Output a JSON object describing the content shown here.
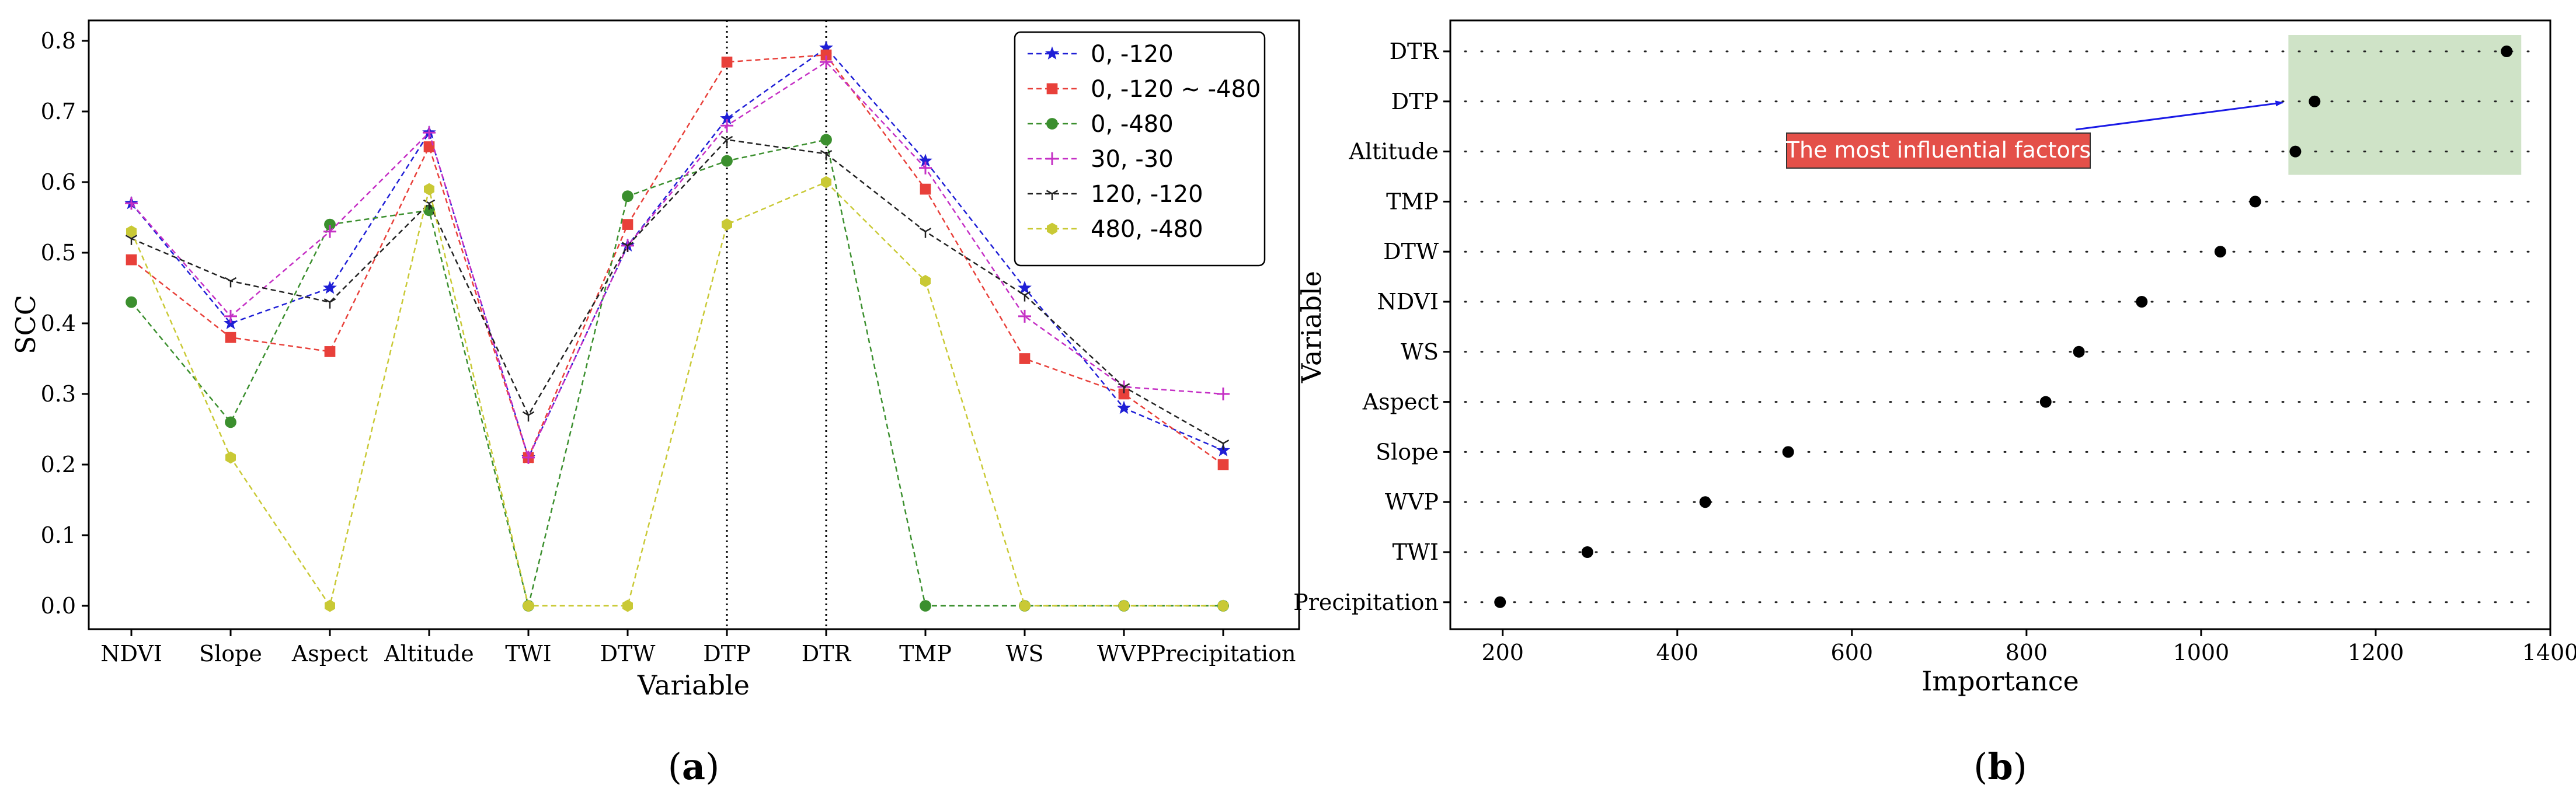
{
  "chart_data": [
    {
      "type": "line",
      "panel_label": "(a)",
      "panel_letter": "a",
      "xlabel": "Variable",
      "ylabel": "SCC",
      "ylim": [
        -0.04,
        0.82
      ],
      "yticks": [
        0.0,
        0.1,
        0.2,
        0.3,
        0.4,
        0.5,
        0.6,
        0.7,
        0.8
      ],
      "ytick_labels": [
        "0.0",
        "0.1",
        "0.2",
        "0.3",
        "0.4",
        "0.5",
        "0.6",
        "0.7",
        "0.8"
      ],
      "categories": [
        "NDVI",
        "Slope",
        "Aspect",
        "Altitude",
        "TWI",
        "DTW",
        "DTP",
        "DTR",
        "TMP",
        "WS",
        "WVP",
        "Precipitation"
      ],
      "vertical_lines_at": [
        "DTP",
        "DTR"
      ],
      "legend_position": "top-right",
      "series": [
        {
          "name": "0, -120",
          "color": "#1f1fd6",
          "marker": "star",
          "values": [
            0.57,
            0.4,
            0.45,
            0.67,
            0.21,
            0.51,
            0.69,
            0.79,
            0.63,
            0.45,
            0.28,
            0.22
          ]
        },
        {
          "name": "0, -120 ~ -480",
          "color": "#e8403a",
          "marker": "square",
          "values": [
            0.49,
            0.38,
            0.36,
            0.65,
            0.21,
            0.54,
            0.77,
            0.78,
            0.59,
            0.35,
            0.3,
            0.2
          ]
        },
        {
          "name": "0, -480",
          "color": "#3b8f2e",
          "marker": "circle",
          "values": [
            0.43,
            0.26,
            0.54,
            0.56,
            0.0,
            0.58,
            0.63,
            0.66,
            0.0,
            0.0,
            0.0,
            0.0
          ]
        },
        {
          "name": "30, -30",
          "color": "#c530c5",
          "marker": "plus",
          "values": [
            0.57,
            0.41,
            0.53,
            0.67,
            0.21,
            0.51,
            0.68,
            0.77,
            0.62,
            0.41,
            0.31,
            0.3
          ]
        },
        {
          "name": "120, -120",
          "color": "#222222",
          "marker": "tri",
          "values": [
            0.52,
            0.46,
            0.43,
            0.57,
            0.27,
            0.51,
            0.66,
            0.64,
            0.53,
            0.44,
            0.31,
            0.23
          ]
        },
        {
          "name": "480, -480",
          "color": "#c9c935",
          "marker": "hexagon",
          "values": [
            0.53,
            0.21,
            0.0,
            0.59,
            0.0,
            0.0,
            0.54,
            0.6,
            0.46,
            0.0,
            0.0,
            0.0
          ]
        }
      ]
    },
    {
      "type": "scatter",
      "panel_label": "(b)",
      "panel_letter": "b",
      "xlabel": "Importance",
      "ylabel": "Variable",
      "xlim": [
        140,
        1400
      ],
      "xticks": [
        200,
        400,
        600,
        800,
        1000,
        1200,
        1400
      ],
      "xtick_labels": [
        "200",
        "400",
        "600",
        "800",
        "1000",
        "1200",
        "1400"
      ],
      "categories": [
        "DTR",
        "DTP",
        "Altitude",
        "TMP",
        "DTW",
        "NDVI",
        "WS",
        "Aspect",
        "Slope",
        "WVP",
        "TWI",
        "Precipitation"
      ],
      "values": [
        1350,
        1130,
        1108,
        1062,
        1022,
        932,
        860,
        822,
        527,
        432,
        297,
        197
      ],
      "highlight": {
        "categories": [
          "DTR",
          "DTP",
          "Altitude"
        ],
        "color": "#cfe3c7"
      },
      "annotation": {
        "text": "The most influential factors",
        "box_color": "#e45049",
        "text_color": "#ffffff",
        "arrow_color": "#1a1ae6",
        "target": "DTP"
      }
    }
  ]
}
